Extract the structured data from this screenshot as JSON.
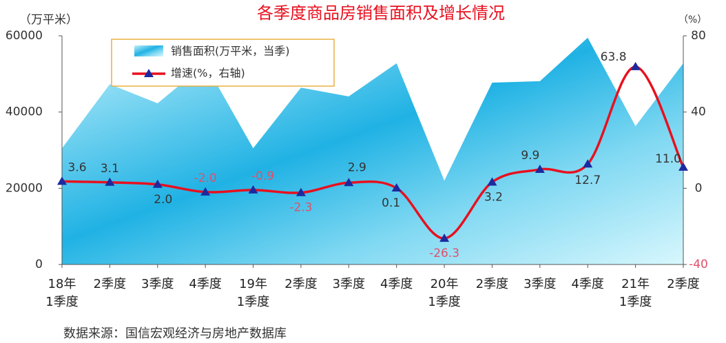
{
  "chart_data": {
    "type": "area-line",
    "title": "各季度商品房销售面积及增长情况",
    "y_label": "（万平米）",
    "y2_label": "（%）",
    "source": "数据来源：国信宏观经济与房地产数据库",
    "categories": [
      "18年\n1季度",
      "2季度",
      "3季度",
      "4季度",
      "19年\n1季度",
      "2季度",
      "3季度",
      "4季度",
      "20年\n1季度",
      "2季度",
      "3季度",
      "4季度",
      "21年\n1季度",
      "2季度"
    ],
    "series": [
      {
        "name": "销售面积(万平米，当季)",
        "type": "area",
        "axis": "y",
        "color": "#29b6e6",
        "values": [
          30500,
          47300,
          42300,
          52600,
          30500,
          46400,
          44100,
          52800,
          22000,
          47700,
          48100,
          59500,
          36300,
          52800
        ]
      },
      {
        "name": "增速(%，右轴)",
        "type": "line",
        "axis": "y2",
        "color": "#e8101e",
        "marker_color": "#1c2aa0",
        "values": [
          3.6,
          3.1,
          2.0,
          -2.0,
          -0.9,
          -2.3,
          2.9,
          0.1,
          -26.3,
          3.2,
          9.9,
          12.7,
          63.8,
          11.0
        ],
        "value_labels": [
          "3.6",
          "3.1",
          "2.0",
          "-2.0",
          "-0.9",
          "-2.3",
          "2.9",
          "0.1",
          "-26.3",
          "3.2",
          "9.9",
          "12.7",
          "63.8",
          "11.0"
        ]
      }
    ],
    "ylim": [
      0,
      60000
    ],
    "yticks": [
      0,
      20000,
      40000,
      60000
    ],
    "y2lim": [
      -40,
      80
    ],
    "y2ticks": [
      -40,
      0,
      40,
      80
    ],
    "negative_label_color": "#e0506a",
    "label_color": "#333333",
    "title_color": "#e8101e"
  }
}
